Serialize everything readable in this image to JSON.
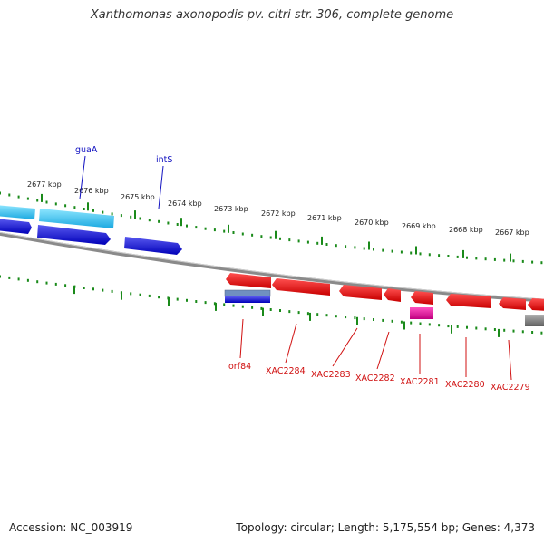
{
  "title": "Xanthomonas axonopodis pv. citri str. 306, complete genome",
  "footer": {
    "accession": "Accession: NC_003919",
    "summary": "Topology: circular; Length: 5,175,554 bp; Genes: 4,373"
  },
  "colors": {
    "forward_gene": "#1010d8",
    "forward_light": "#3cc8f0",
    "reverse_gene": "#e80000",
    "pseudo_gene": "#e01090",
    "backbone": "#888888",
    "ticks": "#1a8a1a",
    "forward_label": "#1010c0",
    "reverse_label": "#d01010"
  },
  "scale_labels": [
    "2677 kbp",
    "2676 kbp",
    "2675 kbp",
    "2674 kbp",
    "2673 kbp",
    "2672 kbp",
    "2671 kbp",
    "2670 kbp",
    "2669 kbp",
    "2668 kbp",
    "2667 kbp"
  ],
  "forward_labels": [
    "guaA",
    "intS"
  ],
  "reverse_labels": [
    "orf84",
    "XAC2284",
    "XAC2283",
    "XAC2282",
    "XAC2281",
    "XAC2280",
    "XAC2279"
  ]
}
